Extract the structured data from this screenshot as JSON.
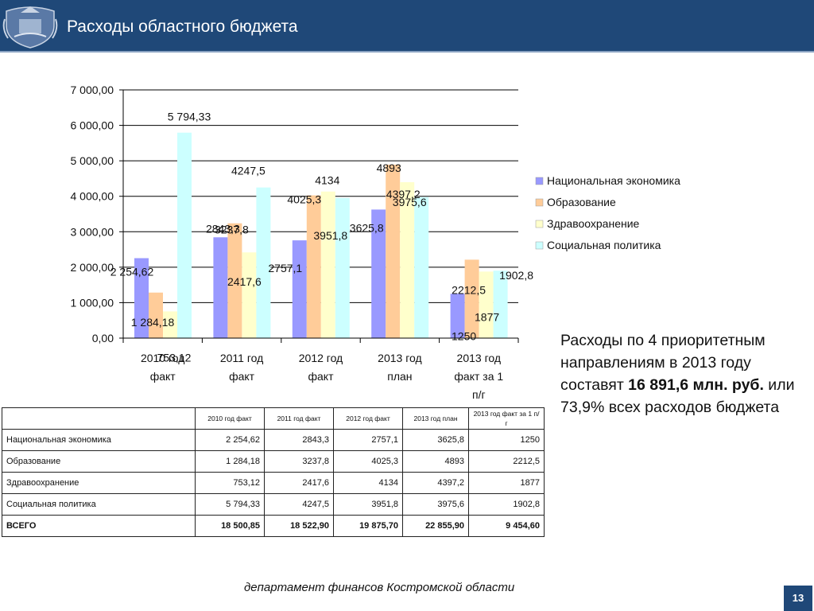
{
  "header": {
    "title": "Расходы областного бюджета"
  },
  "chart_data": {
    "type": "bar",
    "categories": [
      "2010 год факт",
      "2011 год факт",
      "2012 год факт",
      "2013 год план",
      "2013 год факт за 1 п/г"
    ],
    "category_lines": [
      [
        "2010 год",
        "факт"
      ],
      [
        "2011 год",
        "факт"
      ],
      [
        "2012 год",
        "факт"
      ],
      [
        "2013 год",
        "план"
      ],
      [
        "2013 год",
        "факт за 1",
        "п/г"
      ]
    ],
    "series": [
      {
        "name": "Национальная экономика",
        "values": [
          2254.62,
          2843.3,
          2757.1,
          3625.8,
          1250
        ],
        "labels": [
          "2 254,62",
          "2843,3",
          "2757,1",
          "3625,8",
          "1250"
        ],
        "color": "#9999ff"
      },
      {
        "name": "Образование",
        "values": [
          1284.18,
          3237.8,
          4025.3,
          4893,
          2212.5
        ],
        "labels": [
          "1 284,18",
          "3237,8",
          "4025,3",
          "4893",
          "2212,5"
        ],
        "color": "#ffcc99"
      },
      {
        "name": "Здравоохранение",
        "values": [
          753.12,
          2417.6,
          4134,
          4397.2,
          1877
        ],
        "labels": [
          "753,12",
          "2417,6",
          "4134",
          "4397,2",
          "1877"
        ],
        "color": "#ffffcc"
      },
      {
        "name": "Социальная политика",
        "values": [
          5794.33,
          4247.5,
          3951.8,
          3975.6,
          1902.8
        ],
        "labels": [
          "5 794,33",
          "4247,5",
          "3951,8",
          "3975,6",
          "1902,8"
        ],
        "color": "#ccffff"
      }
    ],
    "ylim": [
      0,
      7000
    ],
    "yticks": [
      0,
      1000,
      2000,
      3000,
      4000,
      5000,
      6000,
      7000
    ],
    "ytick_labels": [
      "0,00",
      "1 000,00",
      "2 000,00",
      "3 000,00",
      "4 000,00",
      "5 000,00",
      "6 000,00",
      "7 000,00"
    ],
    "grid": true,
    "legend": "right"
  },
  "side_text": {
    "before": "Расходы по 4 приоритетным направлениям в 2013 году составят ",
    "bold": "16 891,6 млн. руб.",
    "after": " или 73,9% всех расходов бюджета"
  },
  "table": {
    "columns": [
      "2010 год факт",
      "2011 год факт",
      "2012 год факт",
      "2013 год план",
      "2013 год факт за 1 п/г"
    ],
    "rows": [
      {
        "label": "Национальная экономика",
        "values": [
          "2 254,62",
          "2843,3",
          "2757,1",
          "3625,8",
          "1250"
        ]
      },
      {
        "label": "Образование",
        "values": [
          "1 284,18",
          "3237,8",
          "4025,3",
          "4893",
          "2212,5"
        ]
      },
      {
        "label": "Здравоохранение",
        "values": [
          "753,12",
          "2417,6",
          "4134",
          "4397,2",
          "1877"
        ]
      },
      {
        "label": "Социальная политика",
        "values": [
          "5 794,33",
          "4247,5",
          "3951,8",
          "3975,6",
          "1902,8"
        ]
      }
    ],
    "total": {
      "label": "ВСЕГО",
      "values": [
        "18 500,85",
        "18 522,90",
        "19 875,70",
        "22 855,90",
        "9 454,60"
      ]
    }
  },
  "footer": {
    "text": "департамент финансов  Костромской области"
  },
  "page_number": "13"
}
